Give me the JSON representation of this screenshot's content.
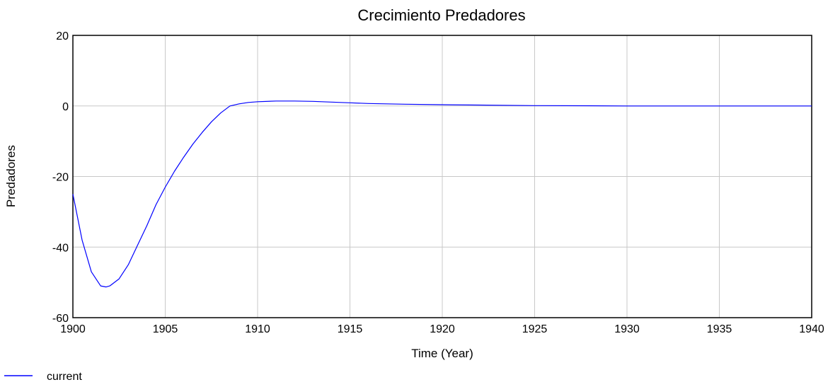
{
  "chart_data": {
    "type": "line",
    "title": "Crecimiento Predadores",
    "xlabel": "Time (Year)",
    "ylabel": "Predadores",
    "xlim": [
      1900,
      1940
    ],
    "ylim": [
      -60,
      20
    ],
    "x_ticks": [
      1900,
      1905,
      1910,
      1915,
      1920,
      1925,
      1930,
      1935,
      1940
    ],
    "y_ticks": [
      20,
      0,
      -20,
      -40,
      -60
    ],
    "grid": true,
    "legend_position": "bottom-left",
    "series": [
      {
        "name": "current",
        "color": "#0000ff",
        "x": [
          1900,
          1900.5,
          1901,
          1901.5,
          1901.8,
          1902,
          1902.5,
          1903,
          1903.5,
          1904,
          1904.5,
          1905,
          1905.5,
          1906,
          1906.5,
          1907,
          1907.5,
          1908,
          1908.5,
          1909,
          1909.5,
          1910,
          1911,
          1912,
          1913,
          1914,
          1915,
          1916,
          1918,
          1920,
          1922,
          1925,
          1928,
          1930,
          1935,
          1940
        ],
        "y": [
          -25,
          -38,
          -47,
          -51,
          -51.3,
          -51,
          -49,
          -45,
          -39.5,
          -34,
          -28,
          -23,
          -18.5,
          -14.5,
          -10.8,
          -7.5,
          -4.5,
          -2,
          0,
          0.6,
          1,
          1.2,
          1.4,
          1.4,
          1.3,
          1.1,
          0.9,
          0.7,
          0.5,
          0.35,
          0.25,
          0.1,
          0.05,
          0,
          0,
          0
        ]
      }
    ]
  }
}
